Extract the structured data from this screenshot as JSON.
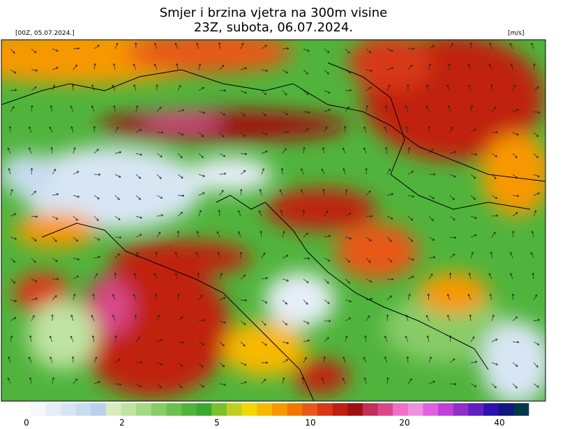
{
  "header": {
    "title": "Smjer i brzina vjetra na 300m visine",
    "subtitle": "23Z, subota, 06.07.2024.",
    "run": "[00Z, 05.07.2024.]",
    "units": "[m/s]"
  },
  "colorbar": {
    "colors": [
      "#ffffff",
      "#f4f8fc",
      "#e6eef8",
      "#d8e6f4",
      "#c8dcf0",
      "#b8d2ec",
      "#d8ecc0",
      "#bfe3a0",
      "#a4d884",
      "#88cc68",
      "#6cc050",
      "#50b43c",
      "#3ca830",
      "#7cc030",
      "#c0d020",
      "#f0d800",
      "#f8b800",
      "#f89800",
      "#f07800",
      "#e85818",
      "#d83818",
      "#c02010",
      "#a01010",
      "#c03058",
      "#d84888",
      "#f070c8",
      "#f090e0",
      "#e060e0",
      "#c040d8",
      "#9030c8",
      "#6020c0",
      "#3010b0",
      "#101880",
      "#003848"
    ],
    "ticks": [
      0,
      2,
      5,
      10,
      20,
      40
    ]
  }
}
